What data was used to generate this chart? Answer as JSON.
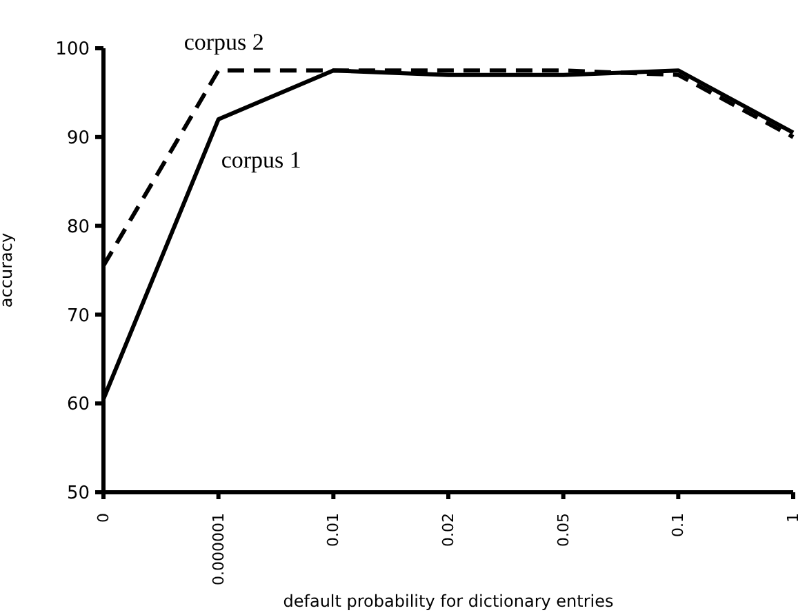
{
  "chart_data": {
    "type": "line",
    "xlabel": "default probability for dictionary entries",
    "ylabel": "accuracy",
    "categories": [
      "0",
      "0.000001",
      "0.01",
      "0.02",
      "0.05",
      "0.1",
      "1"
    ],
    "series": [
      {
        "name": "corpus 1",
        "color": "#000000",
        "line_style": "solid",
        "values": [
          60.5,
          92,
          97.5,
          97,
          97,
          97.5,
          90.5
        ]
      },
      {
        "name": "corpus 2",
        "color": "#000000",
        "line_style": "dashed",
        "values": [
          75.5,
          97.5,
          97.5,
          97.5,
          97.5,
          97,
          90
        ]
      }
    ],
    "ylim": [
      50,
      100
    ],
    "yticks": [
      50,
      60,
      70,
      80,
      90,
      100
    ],
    "grid": false,
    "legend": false,
    "marker": "none"
  }
}
